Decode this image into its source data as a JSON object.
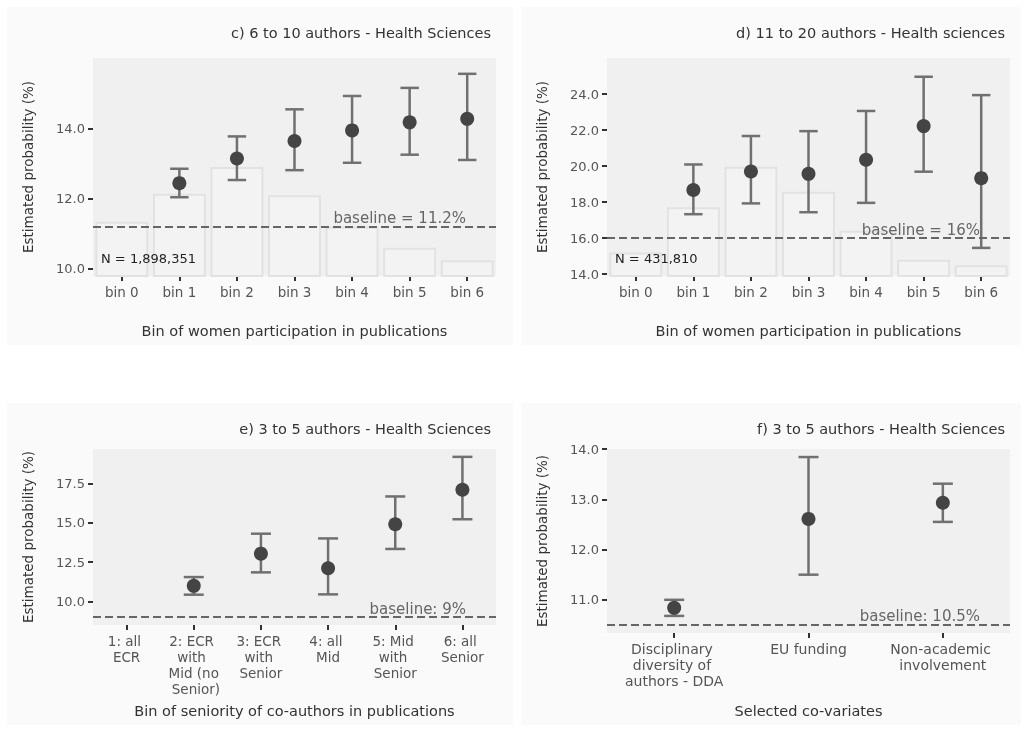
{
  "chart_data": [
    {
      "type": "scatter",
      "title": "c) 6 to 10 authors - Health Sciences",
      "xlabel": "Bin of women participation in publications",
      "ylabel": "Estimated probability (%)",
      "categories": [
        "bin 0",
        "bin 1",
        "bin 2",
        "bin 3",
        "bin 4",
        "bin 5",
        "bin 6"
      ],
      "series": [
        {
          "type": "bar",
          "color": "#f3f3f3",
          "values": [
            11.34,
            12.14,
            12.9,
            12.1,
            11.2,
            10.6,
            10.25
          ]
        },
        {
          "color": "#444444",
          "values": [
            null,
            12.44,
            13.14,
            13.64,
            13.94,
            14.17,
            14.27
          ],
          "errors": [
            null,
            [
              12.04,
              12.85
            ],
            [
              12.53,
              13.77
            ],
            [
              12.81,
              14.54
            ],
            [
              13.02,
              14.92
            ],
            [
              13.25,
              15.15
            ],
            [
              13.1,
              15.55
            ]
          ]
        }
      ],
      "ylim": [
        9.8,
        16.0
      ],
      "yticks": [
        {
          "value": 10,
          "label": "10.0"
        },
        {
          "value": 12,
          "label": "12.0"
        },
        {
          "value": 14,
          "label": "14.0"
        }
      ],
      "ref_lines": [
        {
          "axis": "y",
          "value": 11.2,
          "label": "baseline = 11.2%",
          "color": "#666666",
          "line_style": "dashed"
        }
      ],
      "annotations": [
        "N = 1,898,351"
      ],
      "grid": false,
      "marker": "circle"
    },
    {
      "type": "scatter",
      "title": "d) 11 to 20 authors - Health sciences",
      "xlabel": "Bin of women participation in publications",
      "ylabel": "Estimated probability (%)",
      "categories": [
        "bin 0",
        "bin 1",
        "bin 2",
        "bin 3",
        "bin 4",
        "bin 5",
        "bin 6"
      ],
      "series": [
        {
          "type": "bar",
          "color": "#f3f3f3",
          "values": [
            15.2,
            17.72,
            19.96,
            18.57,
            16.41,
            14.8,
            14.49
          ]
        },
        {
          "color": "#444444",
          "values": [
            null,
            18.67,
            19.7,
            19.57,
            20.35,
            22.22,
            19.33
          ],
          "errors": [
            null,
            [
              17.33,
              20.09
            ],
            [
              17.93,
              21.67
            ],
            [
              17.44,
              21.94
            ],
            [
              17.96,
              23.06
            ],
            [
              19.69,
              24.96
            ],
            [
              15.46,
              23.94
            ]
          ]
        }
      ],
      "ylim": [
        13.9,
        26.0
      ],
      "yticks": [
        {
          "value": 14,
          "label": "14.0"
        },
        {
          "value": 16,
          "label": "16.0"
        },
        {
          "value": 18,
          "label": "18.0"
        },
        {
          "value": 20,
          "label": "20.0"
        },
        {
          "value": 22,
          "label": "22.0"
        },
        {
          "value": 24,
          "label": "24.0"
        }
      ],
      "ref_lines": [
        {
          "axis": "y",
          "value": 16,
          "label": "baseline = 16%",
          "color": "#666666",
          "line_style": "dashed"
        }
      ],
      "annotations": [
        "N = 431,810"
      ],
      "grid": false,
      "marker": "circle"
    },
    {
      "type": "scatter",
      "title": "e) 3 to 5 authors - Health Sciences",
      "xlabel": "Bin of seniority of co-authors in publications",
      "ylabel": "Estimated probability (%)",
      "categories": [
        "1: all ECR",
        "2: ECR with Mid (no Senior)",
        "3: ECR with Senior",
        "4: all Mid",
        "5: Mid with Senior",
        "6: all Senior"
      ],
      "series": [
        {
          "color": "#444444",
          "values": [
            null,
            10.99,
            13.04,
            12.11,
            14.91,
            17.11
          ],
          "errors": [
            null,
            [
              10.43,
              11.55
            ],
            [
              11.85,
              14.31
            ],
            [
              10.45,
              14.01
            ],
            [
              13.34,
              16.68
            ],
            [
              15.23,
              19.2
            ]
          ]
        }
      ],
      "ylim": [
        8.5,
        19.7
      ],
      "yticks": [
        {
          "value": 10,
          "label": "10.0"
        },
        {
          "value": 12.5,
          "label": "12.5"
        },
        {
          "value": 15,
          "label": "15.0"
        },
        {
          "value": 17.5,
          "label": "17.5"
        }
      ],
      "ref_lines": [
        {
          "axis": "y",
          "value": 9,
          "label": "baseline: 9%",
          "color": "#666666",
          "line_style": "dashed"
        }
      ],
      "grid": false,
      "marker": "circle"
    },
    {
      "type": "scatter",
      "title": "f) 3 to 5 authors - Health Sciences",
      "xlabel": "Selected co-variates",
      "ylabel": "Estimated probability (%)",
      "categories": [
        "Disciplinary diversity of authors - DDA",
        "EU funding",
        "Non-academic involvement"
      ],
      "series": [
        {
          "color": "#444444",
          "values": [
            10.84,
            12.61,
            12.93
          ],
          "errors": [
            [
              10.68,
              11.0
            ],
            [
              11.5,
              13.84
            ],
            [
              12.55,
              13.31
            ]
          ]
        }
      ],
      "ylim": [
        10.34,
        14.0
      ],
      "yticks": [
        {
          "value": 11,
          "label": "11.0"
        },
        {
          "value": 12,
          "label": "12.0"
        },
        {
          "value": 13,
          "label": "13.0"
        },
        {
          "value": 14,
          "label": "14.0"
        }
      ],
      "ref_lines": [
        {
          "axis": "y",
          "value": 10.5,
          "label": "baseline: 10.5%",
          "color": "#666666",
          "line_style": "dashed"
        }
      ],
      "grid": false,
      "marker": "circle"
    }
  ]
}
